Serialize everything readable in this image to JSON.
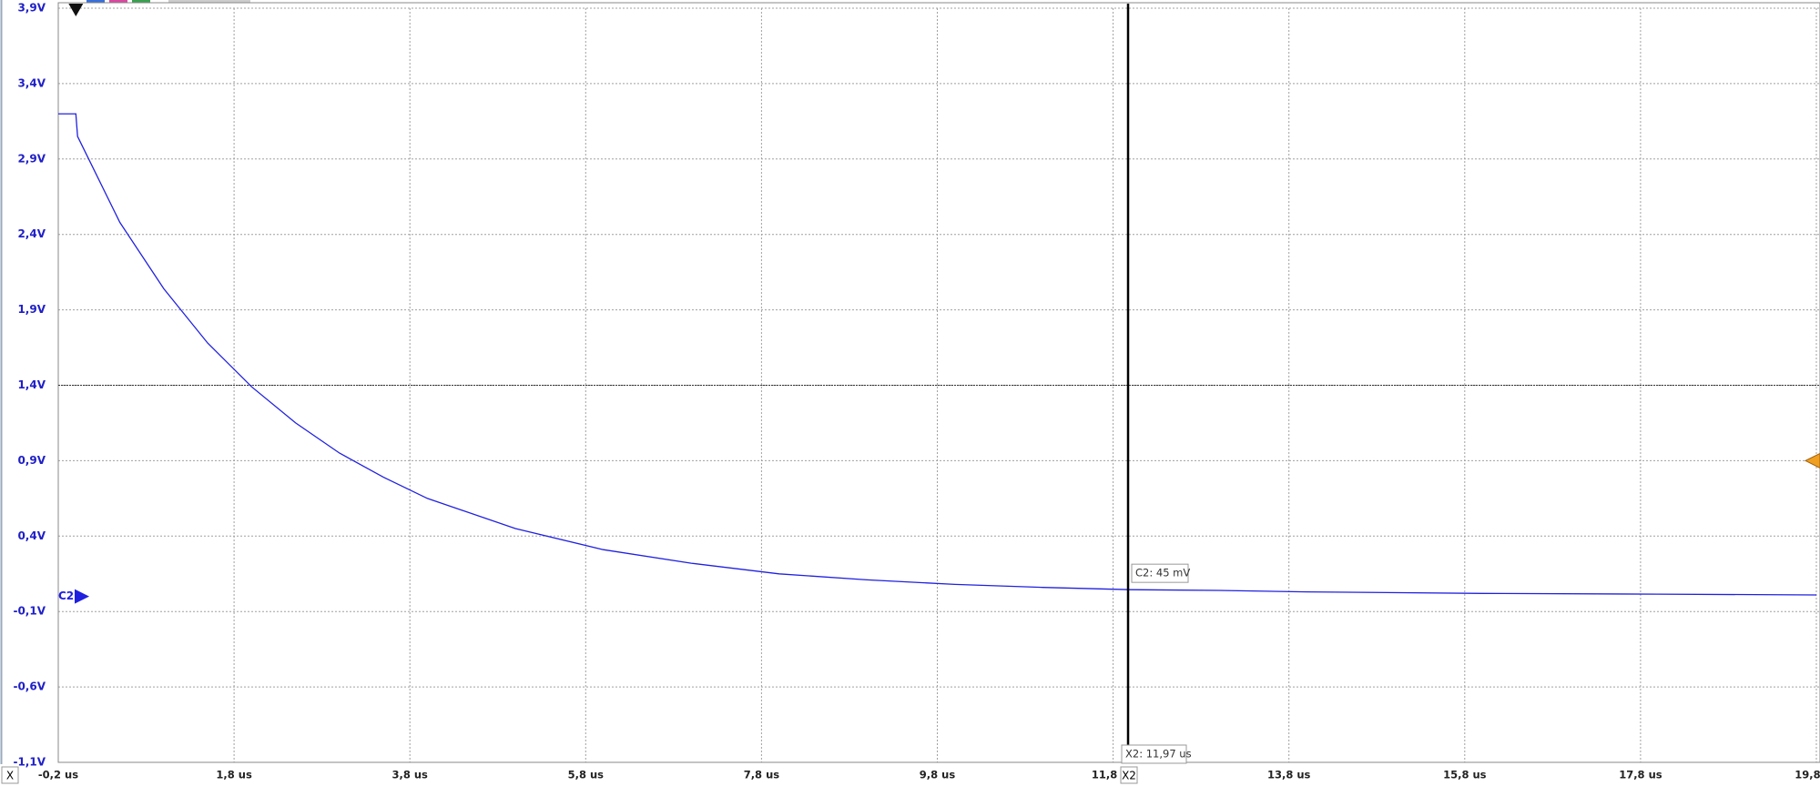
{
  "chart_data": {
    "type": "line",
    "x": [
      -0.2,
      0.0,
      0.02,
      0.5,
      1.0,
      1.5,
      2.0,
      2.5,
      3.0,
      3.5,
      4.0,
      5.0,
      6.0,
      7.0,
      8.0,
      9.0,
      10.0,
      11.0,
      12.0,
      13.0,
      14.0,
      16.0,
      18.0,
      19.8
    ],
    "series": [
      {
        "name": "C2",
        "color": "#2020e0",
        "offset": 0,
        "values": [
          3.2,
          3.2,
          3.05,
          2.48,
          2.04,
          1.68,
          1.39,
          1.15,
          0.95,
          0.79,
          0.65,
          0.45,
          0.31,
          0.22,
          0.15,
          0.11,
          0.08,
          0.06,
          0.045,
          0.04,
          0.03,
          0.02,
          0.015,
          0.01
        ]
      }
    ],
    "xlim": [
      -0.2,
      19.8
    ],
    "ylim": [
      -1.1,
      3.9
    ],
    "xticks": [
      {
        "value": -0.2,
        "label": "-0,2 us"
      },
      {
        "value": 1.8,
        "label": "1,8 us"
      },
      {
        "value": 3.8,
        "label": "3,8 us"
      },
      {
        "value": 5.8,
        "label": "5,8 us"
      },
      {
        "value": 7.8,
        "label": "7,8 us"
      },
      {
        "value": 9.8,
        "label": "9,8 us"
      },
      {
        "value": 11.8,
        "label": "11,8 us"
      },
      {
        "value": 13.8,
        "label": "13,8 us"
      },
      {
        "value": 15.8,
        "label": "15,8 us"
      },
      {
        "value": 17.8,
        "label": "17,8 us"
      },
      {
        "value": 19.8,
        "label": "19,8 us"
      }
    ],
    "yticks": [
      {
        "value": -1.1,
        "label": "-1,1V"
      },
      {
        "value": -0.6,
        "label": "-0,6V"
      },
      {
        "value": -0.1,
        "label": "-0,1V"
      },
      {
        "value": 0.4,
        "label": "0,4V"
      },
      {
        "value": 0.9,
        "label": "0,9V"
      },
      {
        "value": 1.4,
        "label": "1,4V"
      },
      {
        "value": 1.9,
        "label": "1,9V"
      },
      {
        "value": 2.4,
        "label": "2,4V"
      },
      {
        "value": 2.9,
        "label": "2,9V"
      },
      {
        "value": 3.4,
        "label": "3,4V"
      },
      {
        "value": 3.9,
        "label": "3,9V"
      }
    ],
    "grid": true,
    "reference_level": 1.4,
    "trigger_level": 0.9,
    "trigger_time": 0.0,
    "x_axis_marker": "X",
    "cursor": {
      "x": 11.97,
      "marker": "X2",
      "label": "X2: 11,97 us"
    },
    "readout": {
      "value": 0.045,
      "label": "C2: 45 mV"
    }
  }
}
